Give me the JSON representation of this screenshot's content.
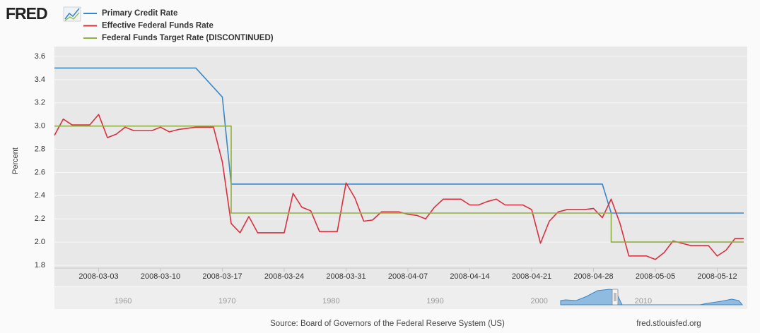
{
  "header": {
    "logo": "FRED"
  },
  "chart_data": {
    "type": "line",
    "y_label": "Percent",
    "x": [
      "2008-02-27",
      "2008-02-28",
      "2008-02-29",
      "2008-03-01",
      "2008-03-02",
      "2008-03-03",
      "2008-03-04",
      "2008-03-05",
      "2008-03-06",
      "2008-03-07",
      "2008-03-08",
      "2008-03-09",
      "2008-03-10",
      "2008-03-11",
      "2008-03-12",
      "2008-03-13",
      "2008-03-14",
      "2008-03-15",
      "2008-03-16",
      "2008-03-17",
      "2008-03-18",
      "2008-03-19",
      "2008-03-20",
      "2008-03-21",
      "2008-03-22",
      "2008-03-23",
      "2008-03-24",
      "2008-03-25",
      "2008-03-26",
      "2008-03-27",
      "2008-03-28",
      "2008-03-29",
      "2008-03-30",
      "2008-03-31",
      "2008-04-01",
      "2008-04-02",
      "2008-04-03",
      "2008-04-04",
      "2008-04-05",
      "2008-04-06",
      "2008-04-07",
      "2008-04-08",
      "2008-04-09",
      "2008-04-10",
      "2008-04-11",
      "2008-04-12",
      "2008-04-13",
      "2008-04-14",
      "2008-04-15",
      "2008-04-16",
      "2008-04-17",
      "2008-04-18",
      "2008-04-19",
      "2008-04-20",
      "2008-04-21",
      "2008-04-22",
      "2008-04-23",
      "2008-04-24",
      "2008-04-25",
      "2008-04-26",
      "2008-04-27",
      "2008-04-28",
      "2008-04-29",
      "2008-04-30",
      "2008-05-01",
      "2008-05-02",
      "2008-05-03",
      "2008-05-04",
      "2008-05-05",
      "2008-05-06",
      "2008-05-07",
      "2008-05-08",
      "2008-05-09",
      "2008-05-10",
      "2008-05-11",
      "2008-05-12",
      "2008-05-13",
      "2008-05-14",
      "2008-05-15"
    ],
    "series": [
      {
        "name": "Primary Credit Rate",
        "color": "#3a87c8",
        "x": [
          "2008-02-27",
          "2008-03-14",
          "2008-03-17",
          "2008-03-18",
          "2008-04-29",
          "2008-04-30",
          "2008-05-15"
        ],
        "values": [
          3.5,
          3.5,
          3.25,
          2.5,
          2.5,
          2.25,
          2.25
        ]
      },
      {
        "name": "Effective Federal Funds Rate",
        "color": "#d8303f",
        "values": [
          2.92,
          3.06,
          3.01,
          3.01,
          3.01,
          3.1,
          2.9,
          2.93,
          2.99,
          2.96,
          2.96,
          2.96,
          2.99,
          2.95,
          2.97,
          2.98,
          2.99,
          2.99,
          2.99,
          2.69,
          2.16,
          2.08,
          2.22,
          2.08,
          2.08,
          2.08,
          2.08,
          2.42,
          2.3,
          2.27,
          2.09,
          2.09,
          2.09,
          2.51,
          2.38,
          2.18,
          2.19,
          2.26,
          2.26,
          2.26,
          2.24,
          2.23,
          2.2,
          2.3,
          2.37,
          2.37,
          2.37,
          2.32,
          2.32,
          2.35,
          2.37,
          2.32,
          2.32,
          2.32,
          2.28,
          1.99,
          2.18,
          2.26,
          2.28,
          2.28,
          2.28,
          2.29,
          2.21,
          2.37,
          2.16,
          1.88,
          1.88,
          1.88,
          1.85,
          1.91,
          2.01,
          1.99,
          1.97,
          1.97,
          1.97,
          1.88,
          1.93,
          2.03,
          2.03
        ]
      },
      {
        "name": "Federal Funds Target Rate (DISCONTINUED)",
        "color": "#8fb03e",
        "x": [
          "2008-02-27",
          "2008-03-18",
          "2008-03-18",
          "2008-04-30",
          "2008-04-30",
          "2008-05-15"
        ],
        "values": [
          3.0,
          3.0,
          2.25,
          2.25,
          2.0,
          2.0
        ]
      }
    ],
    "xlim": [
      "2008-02-27",
      "2008-05-15"
    ],
    "xticks": [
      "2008-03-03",
      "2008-03-10",
      "2008-03-17",
      "2008-03-24",
      "2008-03-31",
      "2008-04-07",
      "2008-04-14",
      "2008-04-21",
      "2008-04-28",
      "2008-05-05",
      "2008-05-12"
    ],
    "ylim": [
      1.8,
      3.6
    ],
    "yticks": [
      1.8,
      {
        "value": 2.0,
        "label": "2.0"
      },
      2.2,
      2.4,
      2.6,
      2.8,
      {
        "value": 3.0,
        "label": "3.0"
      },
      3.2,
      3.4,
      3.6
    ],
    "grid": true
  },
  "navigator": {
    "xlim": [
      1953.4,
      2020.0
    ],
    "xticks": [
      1960,
      1970,
      1980,
      1990,
      2000,
      2010
    ]
  },
  "footer": {
    "source": "Source: Board of Governors of the Federal Reserve System (US)",
    "site": "fred.stlouisfed.org"
  }
}
